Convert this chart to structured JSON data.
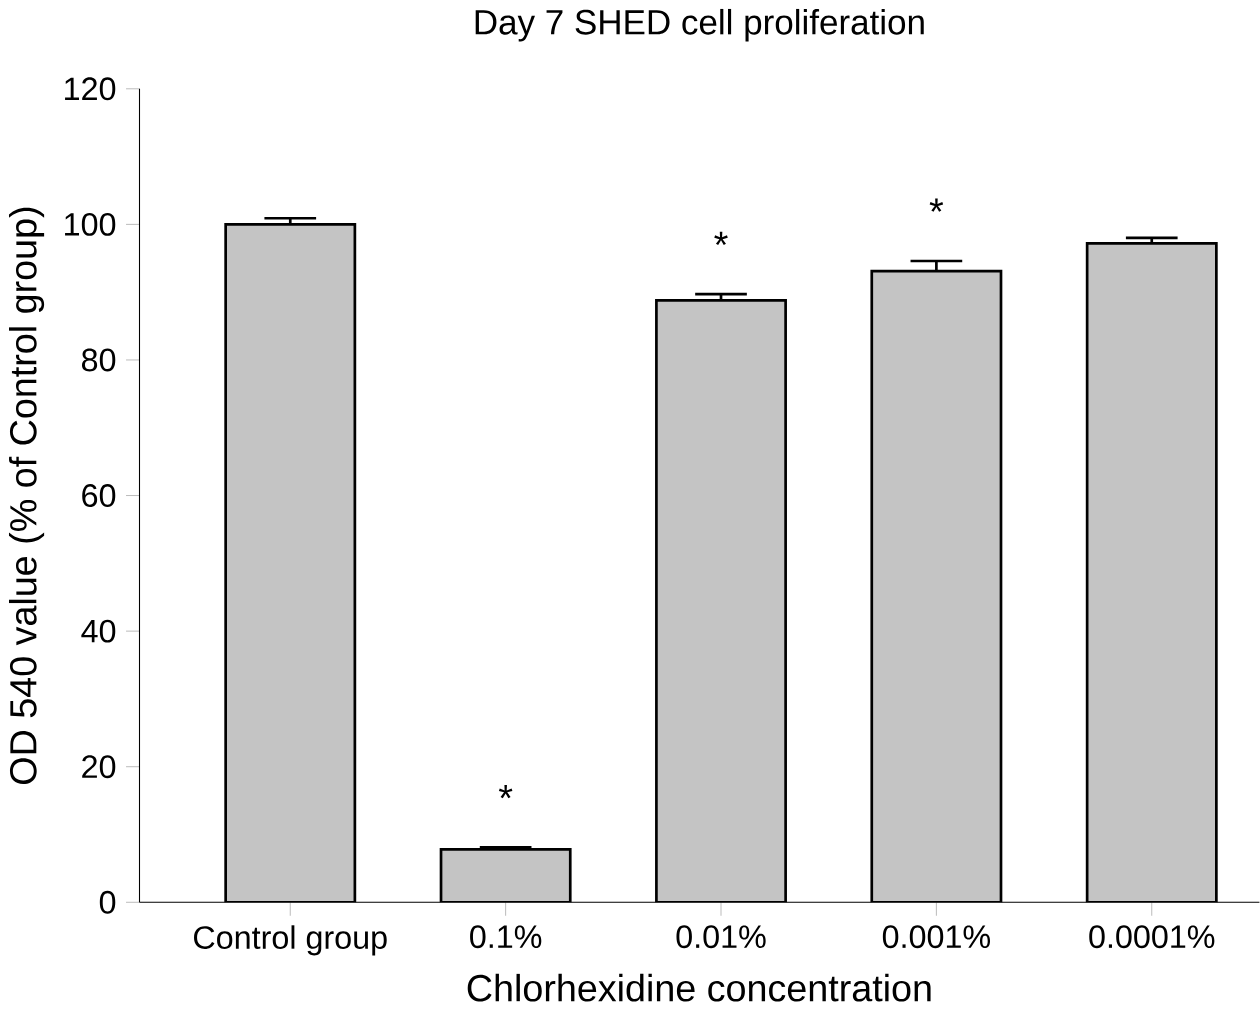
{
  "chart_data": {
    "type": "bar",
    "title": "Day 7 SHED cell proliferation",
    "xlabel": "Chlorhexidine concentration",
    "ylabel": "OD 540 value (% of Control group)",
    "categories": [
      "Control group",
      "0.1%",
      "0.01%",
      "0.001%",
      "0.0001%"
    ],
    "values": [
      100,
      7.8,
      88.8,
      93.1,
      97.2
    ],
    "errors": [
      0.9,
      0.3,
      0.9,
      1.5,
      0.8
    ],
    "color": "#c4c4c4",
    "ylim": [
      0,
      120
    ],
    "yticks": [
      0,
      20,
      40,
      60,
      80,
      100,
      120
    ],
    "annotations": [
      {
        "text": "*",
        "x": "0.1%",
        "y": 7.8
      },
      {
        "text": "*",
        "x": "0.01%",
        "y": 88.8
      },
      {
        "text": "*",
        "x": "0.001%",
        "y": 93.1
      }
    ]
  }
}
